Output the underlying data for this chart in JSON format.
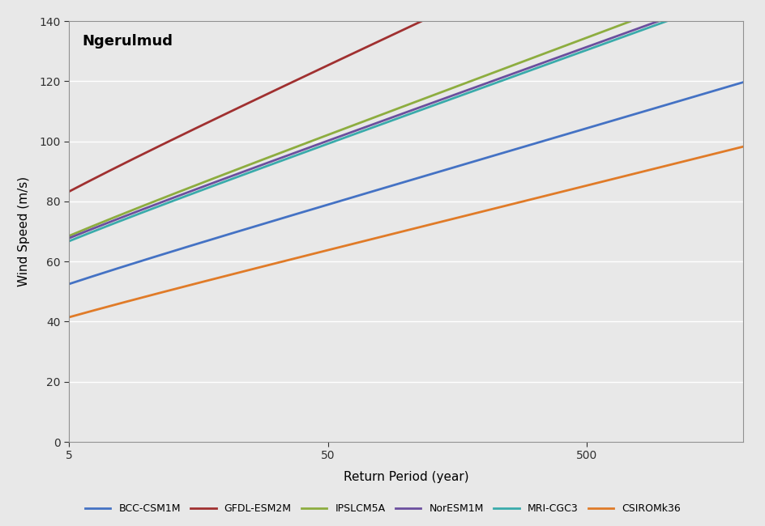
{
  "title": "Ngerulmud",
  "xlabel": "Return Period (year)",
  "ylabel": "Wind Speed (m/s)",
  "ylim": [
    0,
    140
  ],
  "yticks": [
    0,
    20,
    40,
    60,
    80,
    100,
    120,
    140
  ],
  "xlim_left": 5,
  "xlim_right": 2000,
  "xticks": [
    5,
    50,
    500
  ],
  "fig_bg": "#e8e8e8",
  "plot_bg": "#e8e8e8",
  "series": [
    {
      "label": "BCC-CSM1M",
      "color": "#4472C4",
      "u": 36.0,
      "alpha": 11.0
    },
    {
      "label": "GFDL-ESM2M",
      "color": "#A03030",
      "u": 57.0,
      "alpha": 17.5
    },
    {
      "label": "IPSLCM5A",
      "color": "#8DAD3F",
      "u": 47.5,
      "alpha": 14.0
    },
    {
      "label": "NorESM1M",
      "color": "#6B4F9E",
      "u": 47.5,
      "alpha": 13.5
    },
    {
      "label": "MRI-CGC3",
      "color": "#3AABAB",
      "u": 46.5,
      "alpha": 13.5
    },
    {
      "label": "CSIROMk36",
      "color": "#E07B28",
      "u": 27.5,
      "alpha": 9.3
    }
  ]
}
